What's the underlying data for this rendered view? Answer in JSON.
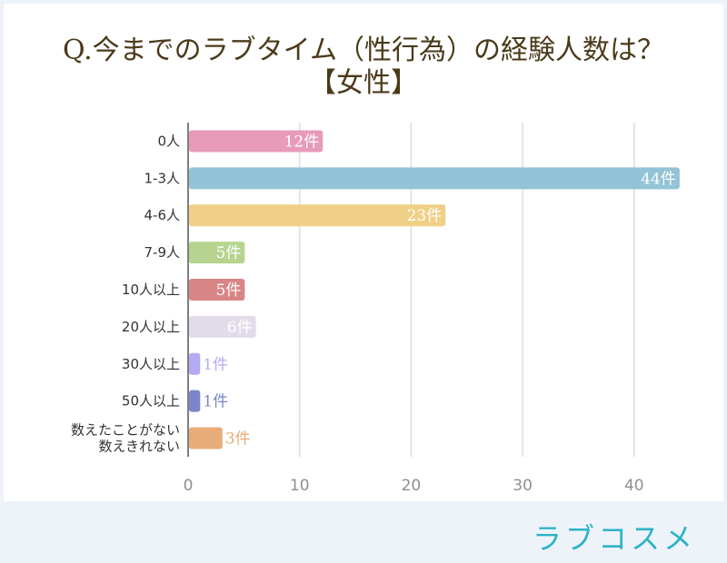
{
  "title_lines": [
    "Q.今までのラブタイム（性行為）の経験人数は？",
    "【女性】"
  ],
  "brand": "ラブコスメ",
  "chart_data": {
    "type": "bar",
    "orientation": "horizontal",
    "title": "Q.今までのラブタイム（性行為）の経験人数は？【女性】",
    "categories": [
      [
        "0人"
      ],
      [
        "1-3人"
      ],
      [
        "4-6人"
      ],
      [
        "7-9人"
      ],
      [
        "10人以上"
      ],
      [
        "20人以上"
      ],
      [
        "30人以上"
      ],
      [
        "50人以上"
      ],
      [
        "数えたことがない",
        "数えきれない"
      ]
    ],
    "values": [
      12,
      44,
      23,
      5,
      5,
      6,
      1,
      1,
      3
    ],
    "value_labels": [
      "12件",
      "44件",
      "23件",
      "5件",
      "5件",
      "6件",
      "1件",
      "1件",
      "3件"
    ],
    "colors": [
      "#e79bb8",
      "#93c3d6",
      "#f0cf86",
      "#b6d48f",
      "#d98585",
      "#e2dcea",
      "#b3abf2",
      "#7a86c9",
      "#e8ac79"
    ],
    "label_inside": [
      true,
      true,
      true,
      true,
      true,
      true,
      false,
      false,
      false
    ],
    "xlim": [
      0,
      45
    ],
    "xticks": [
      0,
      10,
      20,
      30,
      40
    ],
    "grid": true,
    "legend": "none"
  }
}
